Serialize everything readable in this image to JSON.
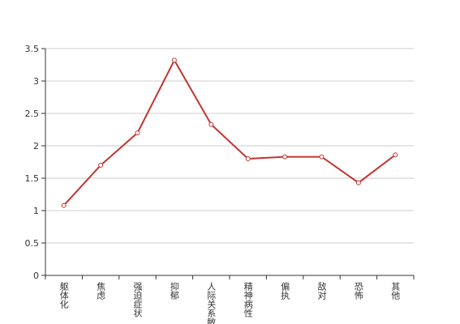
{
  "chart_data": {
    "type": "line",
    "categories": [
      "躯体化",
      "焦虑",
      "强迫症状",
      "抑郁",
      "人际关系敏感",
      "精神病性",
      "偏执",
      "敌对",
      "恐怖",
      "其他"
    ],
    "series": [
      {
        "color": "#c23531",
        "values": [
          1.08,
          1.7,
          2.2,
          3.32,
          2.33,
          1.8,
          1.83,
          1.83,
          1.43,
          1.86
        ]
      }
    ],
    "ylim": [
      0,
      3.5
    ],
    "yticks": [
      0,
      0.5,
      1,
      1.5,
      2,
      2.5,
      3,
      3.5
    ],
    "grid": true
  }
}
